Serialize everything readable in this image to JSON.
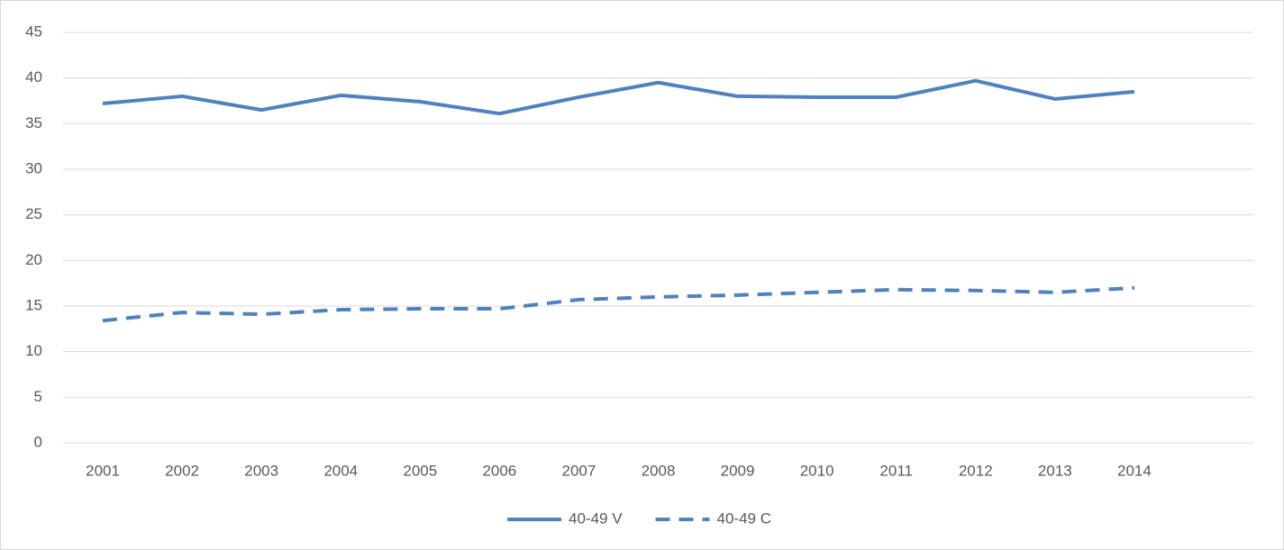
{
  "chart_data": {
    "type": "line",
    "categories": [
      "2001",
      "2002",
      "2003",
      "2004",
      "2005",
      "2006",
      "2007",
      "2008",
      "2009",
      "2010",
      "2011",
      "2012",
      "2013",
      "2014",
      null
    ],
    "series": [
      {
        "name": "40-49 V",
        "color": "#4f81bd",
        "style": "solid",
        "values": [
          37.2,
          38.0,
          36.5,
          38.1,
          37.4,
          36.1,
          37.9,
          39.5,
          38.0,
          37.9,
          37.9,
          39.7,
          37.7,
          38.5,
          null
        ]
      },
      {
        "name": "40-49 C",
        "color": "#4f81bd",
        "style": "dashed",
        "values": [
          13.4,
          14.3,
          14.1,
          14.6,
          14.7,
          14.7,
          15.7,
          16.0,
          16.2,
          16.5,
          16.8,
          16.7,
          16.5,
          17.0,
          null
        ]
      }
    ],
    "ylim": [
      0,
      45
    ],
    "yticks": [
      0,
      5,
      10,
      15,
      20,
      25,
      30,
      35,
      40,
      45
    ],
    "grid": true,
    "legend": "bottom"
  }
}
